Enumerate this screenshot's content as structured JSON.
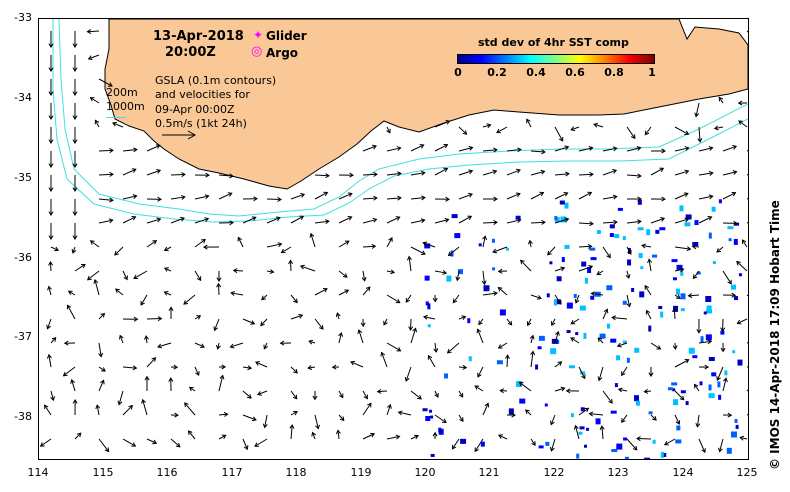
{
  "map": {
    "title_date": "13-Apr-2018",
    "title_time": "20:00Z",
    "legend_glider": "Glider",
    "legend_argo": "Argo",
    "contour_200": "200m",
    "contour_1000": "1000m",
    "gsla_lines": [
      "GSLA (0.1m contours)",
      "and velocities for",
      "09-Apr 00:00Z",
      "0.5m/s (1kt 24h)"
    ],
    "colorbar_title": "std dev of 4hr SST comp",
    "colorbar_ticks": [
      "0",
      "0.2",
      "0.4",
      "0.6",
      "0.8",
      "1"
    ],
    "lat_ticks": [
      "-33",
      "-34",
      "-35",
      "-36",
      "-37",
      "-38"
    ],
    "lon_ticks": [
      "114",
      "115",
      "116",
      "117",
      "118",
      "119",
      "120",
      "121",
      "122",
      "123",
      "124",
      "125"
    ],
    "credit": "© IMOS 14-Apr-2018 17:09 Hobart Time",
    "colors": {
      "land": "#f9c896",
      "bathymetry": "#40e0e0",
      "sst_low": "#0000c0",
      "glider": "#ff00ff"
    }
  }
}
